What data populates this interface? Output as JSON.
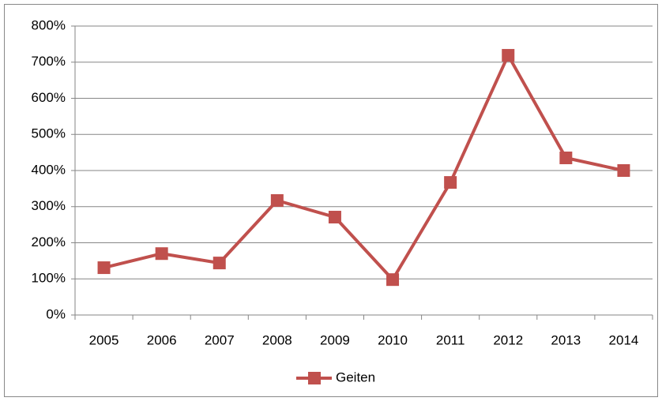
{
  "chart_data": {
    "type": "line",
    "categories": [
      "2005",
      "2006",
      "2007",
      "2008",
      "2009",
      "2010",
      "2011",
      "2012",
      "2013",
      "2014"
    ],
    "series": [
      {
        "name": "Geiten",
        "color": "#c0504d",
        "values": [
          131,
          170,
          144,
          317,
          271,
          98,
          367,
          719,
          435,
          400
        ]
      }
    ],
    "ylim": [
      0,
      800
    ],
    "yticks": [
      {
        "value": 0,
        "label": "0%"
      },
      {
        "value": 100,
        "label": "100%"
      },
      {
        "value": 200,
        "label": "200%"
      },
      {
        "value": 300,
        "label": "300%"
      },
      {
        "value": 400,
        "label": "400%"
      },
      {
        "value": 500,
        "label": "500%"
      },
      {
        "value": 600,
        "label": "600%"
      },
      {
        "value": 700,
        "label": "700%"
      },
      {
        "value": 800,
        "label": "800%"
      }
    ],
    "grid": true,
    "legend": "bottom"
  }
}
